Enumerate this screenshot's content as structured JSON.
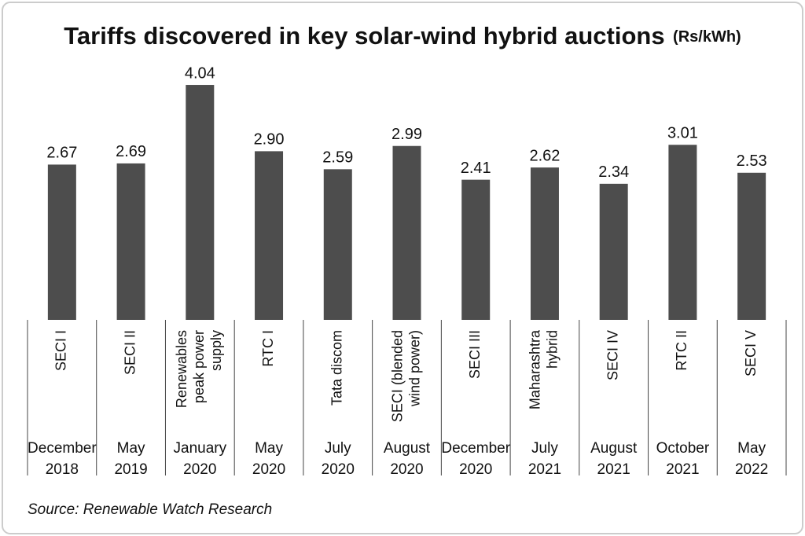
{
  "chart_data": {
    "type": "bar",
    "title": "Tariffs discovered in key solar-wind hybrid auctions",
    "subtitle": "(Rs/kWh)",
    "categories": [
      [
        "SECI I"
      ],
      [
        "SECI II"
      ],
      [
        "Renewables",
        "peak power",
        "supply"
      ],
      [
        "RTC I"
      ],
      [
        "Tata discom"
      ],
      [
        "SECI (blended",
        "wind power)"
      ],
      [
        "SECI III"
      ],
      [
        "Maharashtra",
        "hybrid"
      ],
      [
        "SECI IV"
      ],
      [
        "RTC II"
      ],
      [
        "SECI V"
      ]
    ],
    "dates": [
      [
        "December",
        "2018"
      ],
      [
        "May",
        "2019"
      ],
      [
        "January",
        "2020"
      ],
      [
        "May",
        "2020"
      ],
      [
        "July",
        "2020"
      ],
      [
        "August",
        "2020"
      ],
      [
        "December",
        "2020"
      ],
      [
        "July",
        "2021"
      ],
      [
        "August",
        "2021"
      ],
      [
        "October",
        "2021"
      ],
      [
        "May",
        "2022"
      ]
    ],
    "values": [
      2.67,
      2.69,
      4.04,
      2.9,
      2.59,
      2.99,
      2.41,
      2.62,
      2.34,
      3.01,
      2.53
    ],
    "value_labels": [
      "2.67",
      "2.69",
      "4.04",
      "2.90",
      "2.59",
      "2.99",
      "2.41",
      "2.62",
      "2.34",
      "3.01",
      "2.53"
    ],
    "color": "#4d4d4d",
    "ylim": [
      0,
      4.5
    ],
    "source": "Source: Renewable Watch Research"
  }
}
